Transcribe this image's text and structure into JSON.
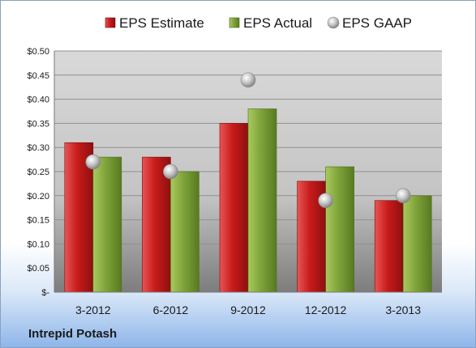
{
  "company": "Intrepid Potash",
  "chart_data": {
    "type": "bar",
    "categories": [
      "3-2012",
      "6-2012",
      "9-2012",
      "12-2012",
      "3-2013"
    ],
    "series": [
      {
        "name": "EPS Estimate",
        "kind": "bar",
        "color": "#cc1f1f",
        "values": [
          0.31,
          0.28,
          0.35,
          0.23,
          0.19
        ]
      },
      {
        "name": "EPS Actual",
        "kind": "bar",
        "color": "#7fa33a",
        "values": [
          0.28,
          0.25,
          0.38,
          0.26,
          0.2
        ]
      },
      {
        "name": "EPS GAAP",
        "kind": "marker",
        "color": "#b8b8b8",
        "values": [
          0.27,
          0.25,
          0.44,
          0.19,
          0.2
        ]
      }
    ],
    "yticks": [
      "$-",
      "$0.05",
      "$0.10",
      "$0.15",
      "$0.20",
      "$0.25",
      "$0.30",
      "$0.35",
      "$0.40",
      "$0.45",
      "$0.50"
    ],
    "ylim": [
      0,
      0.5
    ],
    "legend_position": "top",
    "grid": true
  }
}
